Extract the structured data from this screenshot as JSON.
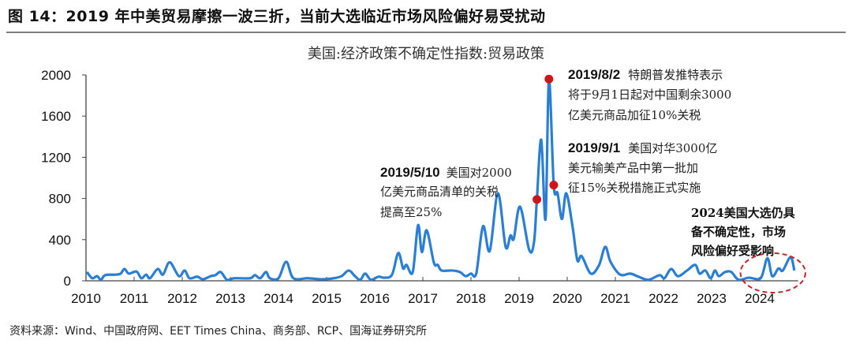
{
  "figure_title": "图 14：2019 年中美贸易摩擦一波三折，当前大选临近市场风险偏好易受扰动",
  "source": "资料来源：Wind、中国政府网、EET Times China、商务部、RCP、国海证券研究所",
  "chart_data": {
    "type": "line",
    "title": "美国:经济政策不确定性指数:贸易政策",
    "xlabel": "",
    "ylabel": "",
    "xlim": [
      2010,
      2024.8
    ],
    "ylim": [
      0,
      2000
    ],
    "x_ticks": [
      "2010",
      "2011",
      "2012",
      "2013",
      "2014",
      "2015",
      "2016",
      "2017",
      "2018",
      "2019",
      "2020",
      "2021",
      "2022",
      "2023",
      "2024"
    ],
    "y_ticks": [
      0,
      400,
      800,
      1200,
      1600,
      2000
    ],
    "grid": false,
    "line_color": "#2a7fd4",
    "marker_color": "#d0141b",
    "series": [
      {
        "points": [
          [
            2010.02,
            85
          ],
          [
            2010.13,
            25
          ],
          [
            2010.23,
            45
          ],
          [
            2010.31,
            10
          ],
          [
            2010.4,
            55
          ],
          [
            2010.62,
            60
          ],
          [
            2010.72,
            70
          ],
          [
            2010.8,
            115
          ],
          [
            2010.89,
            70
          ],
          [
            2011.05,
            90
          ],
          [
            2011.15,
            25
          ],
          [
            2011.25,
            60
          ],
          [
            2011.33,
            25
          ],
          [
            2011.49,
            115
          ],
          [
            2011.6,
            60
          ],
          [
            2011.74,
            180
          ],
          [
            2011.93,
            45
          ],
          [
            2012.05,
            100
          ],
          [
            2012.15,
            25
          ],
          [
            2012.31,
            40
          ],
          [
            2012.43,
            15
          ],
          [
            2012.59,
            45
          ],
          [
            2012.69,
            55
          ],
          [
            2012.8,
            85
          ],
          [
            2012.93,
            10
          ],
          [
            2013.08,
            25
          ],
          [
            2013.41,
            25
          ],
          [
            2013.51,
            55
          ],
          [
            2013.62,
            25
          ],
          [
            2013.74,
            85
          ],
          [
            2013.82,
            25
          ],
          [
            2014.0,
            25
          ],
          [
            2014.16,
            185
          ],
          [
            2014.31,
            25
          ],
          [
            2014.61,
            25
          ],
          [
            2014.89,
            15
          ],
          [
            2015.15,
            25
          ],
          [
            2015.31,
            45
          ],
          [
            2015.46,
            100
          ],
          [
            2015.59,
            45
          ],
          [
            2015.7,
            10
          ],
          [
            2015.8,
            70
          ],
          [
            2015.92,
            10
          ],
          [
            2016.08,
            40
          ],
          [
            2016.2,
            30
          ],
          [
            2016.36,
            60
          ],
          [
            2016.49,
            270
          ],
          [
            2016.59,
            120
          ],
          [
            2016.66,
            155
          ],
          [
            2016.79,
            85
          ],
          [
            2016.9,
            540
          ],
          [
            2016.98,
            280
          ],
          [
            2017.08,
            490
          ],
          [
            2017.23,
            175
          ],
          [
            2017.31,
            155
          ],
          [
            2017.39,
            100
          ],
          [
            2017.61,
            100
          ],
          [
            2017.77,
            85
          ],
          [
            2017.89,
            45
          ],
          [
            2018.0,
            70
          ],
          [
            2018.11,
            70
          ],
          [
            2018.25,
            530
          ],
          [
            2018.39,
            290
          ],
          [
            2018.56,
            850
          ],
          [
            2018.72,
            330
          ],
          [
            2018.82,
            440
          ],
          [
            2018.89,
            410
          ],
          [
            2019.02,
            720
          ],
          [
            2019.21,
            300
          ],
          [
            2019.31,
            375
          ],
          [
            2019.37,
            790
          ],
          [
            2019.46,
            1370
          ],
          [
            2019.55,
            600
          ],
          [
            2019.62,
            1960
          ],
          [
            2019.72,
            930
          ],
          [
            2019.8,
            850
          ],
          [
            2019.89,
            600
          ],
          [
            2019.98,
            850
          ],
          [
            2020.11,
            530
          ],
          [
            2020.21,
            200
          ],
          [
            2020.3,
            240
          ],
          [
            2020.49,
            70
          ],
          [
            2020.66,
            150
          ],
          [
            2020.79,
            330
          ],
          [
            2020.9,
            185
          ],
          [
            2021.1,
            60
          ],
          [
            2021.31,
            70
          ],
          [
            2021.48,
            40
          ],
          [
            2021.69,
            10
          ],
          [
            2021.92,
            55
          ],
          [
            2022.02,
            25
          ],
          [
            2022.16,
            115
          ],
          [
            2022.3,
            45
          ],
          [
            2022.49,
            100
          ],
          [
            2022.66,
            155
          ],
          [
            2022.75,
            70
          ],
          [
            2022.87,
            100
          ],
          [
            2022.98,
            25
          ],
          [
            2023.07,
            100
          ],
          [
            2023.15,
            45
          ],
          [
            2023.28,
            85
          ],
          [
            2023.41,
            85
          ],
          [
            2023.56,
            10
          ],
          [
            2023.77,
            30
          ],
          [
            2024.02,
            25
          ],
          [
            2024.16,
            220
          ],
          [
            2024.26,
            45
          ],
          [
            2024.39,
            120
          ],
          [
            2024.48,
            100
          ],
          [
            2024.64,
            230
          ],
          [
            2024.72,
            100
          ]
        ]
      }
    ],
    "markers": [
      {
        "x": 2019.37,
        "y": 790,
        "label": "2019/5/10"
      },
      {
        "x": 2019.62,
        "y": 1960,
        "label": "2019/8/2"
      },
      {
        "x": 2019.72,
        "y": 930,
        "label": "2019/9/1"
      }
    ],
    "annotations": [
      {
        "date": "2019/5/10",
        "lines": [
          "美国对2000",
          "亿美元商品清单的关税",
          "提高至25%"
        ]
      },
      {
        "date": "2019/8/2",
        "lines": [
          "特朗普发推特表示",
          "将于9月1日起对中国剩余3000",
          "亿美元商品加征10%关税"
        ]
      },
      {
        "date": "2019/9/1",
        "lines": [
          "美国对华3000亿",
          "美元输美产品中第一批加",
          "征15%关税措施正式实施"
        ]
      },
      {
        "date": "",
        "lines": [
          "2024美国大选仍具",
          "备不确定性，市场",
          "风险偏好受影响"
        ]
      }
    ],
    "highlight": {
      "shape": "dashed-ellipse",
      "color": "#c0272d",
      "x_range": [
        2023.6,
        2024.95
      ]
    }
  }
}
